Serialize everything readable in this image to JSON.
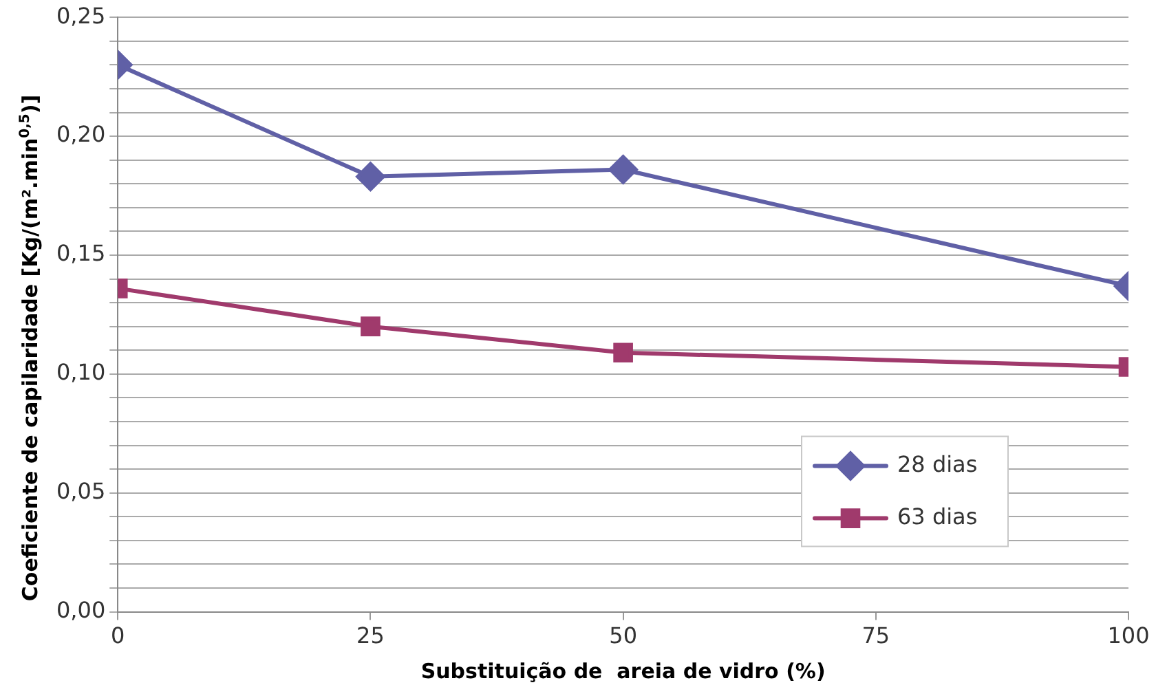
{
  "chart_data": {
    "type": "line",
    "xlabel": "Substituição de  areia de vidro (%)",
    "ylabel": "Coeficiente de capilaridade  [Kg/(m².min$^{0,5}$)]",
    "series": [
      {
        "name": "28 dias",
        "color": "#6060a6",
        "marker": "diamond",
        "x": [
          0,
          25,
          50,
          100
        ],
        "values": [
          0.23,
          0.183,
          0.186,
          0.137
        ]
      },
      {
        "name": "63 dias",
        "color": "#a03a6c",
        "marker": "square",
        "x": [
          0,
          25,
          50,
          100
        ],
        "values": [
          0.136,
          0.12,
          0.109,
          0.103
        ]
      }
    ],
    "xlim": [
      0,
      100
    ],
    "xticks": [
      0,
      25,
      50,
      75,
      100
    ],
    "ylim": [
      0,
      0.25
    ],
    "yticks": [
      {
        "value": 0,
        "label": "0,00"
      },
      {
        "value": 0.01,
        "label": null
      },
      {
        "value": 0.02,
        "label": null
      },
      {
        "value": 0.03,
        "label": null
      },
      {
        "value": 0.04,
        "label": null
      },
      {
        "value": 0.05,
        "label": "0,05"
      },
      {
        "value": 0.06,
        "label": null
      },
      {
        "value": 0.07,
        "label": null
      },
      {
        "value": 0.08,
        "label": null
      },
      {
        "value": 0.09,
        "label": null
      },
      {
        "value": 0.1,
        "label": "0,10"
      },
      {
        "value": 0.11,
        "label": null
      },
      {
        "value": 0.12,
        "label": null
      },
      {
        "value": 0.13,
        "label": null
      },
      {
        "value": 0.14,
        "label": null
      },
      {
        "value": 0.15,
        "label": "0,15"
      },
      {
        "value": 0.16,
        "label": null
      },
      {
        "value": 0.17,
        "label": null
      },
      {
        "value": 0.18,
        "label": null
      },
      {
        "value": 0.19,
        "label": null
      },
      {
        "value": 0.2,
        "label": "0,20"
      },
      {
        "value": 0.21,
        "label": null
      },
      {
        "value": 0.22,
        "label": null
      },
      {
        "value": 0.23,
        "label": null
      },
      {
        "value": 0.24,
        "label": null
      },
      {
        "value": 0.25,
        "label": "0,25"
      }
    ],
    "grid": "y",
    "legend": "bottom right",
    "line_style": "solid"
  }
}
